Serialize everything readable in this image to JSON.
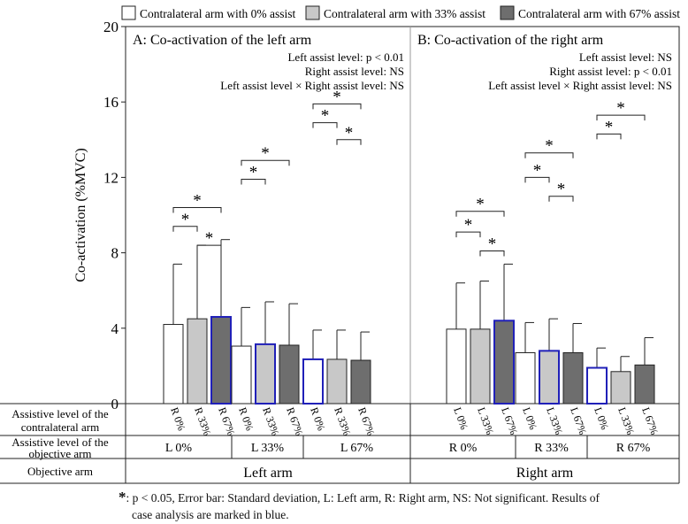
{
  "chart_data": {
    "type": "bar",
    "y_axis": {
      "label": "Co-activation  (%MVC)",
      "min": 0,
      "max": 20,
      "ticks": [
        0,
        4,
        8,
        12,
        16,
        20
      ]
    },
    "legend": {
      "placement": "top",
      "entries": [
        {
          "label": "Contralateral arm with 0% assist",
          "color": "#ffffff"
        },
        {
          "label": "Contralateral arm with 33% assist",
          "color": "#c8c8c8"
        },
        {
          "label": "Contralateral arm with 67% assist",
          "color": "#6e6e6e"
        }
      ]
    },
    "panels": [
      {
        "title": "A: Co-activation of the left arm",
        "stats": [
          "Left assist level: p < 0.01",
          "Right assist level: NS",
          "Left assist level × Right assist level: NS"
        ],
        "groups": [
          {
            "label": "L 0%",
            "bars": [
              {
                "label": "R 0%",
                "value": 4.2,
                "sd": 3.2,
                "fill": "white",
                "highlight": false
              },
              {
                "label": "R 33%",
                "value": 4.5,
                "sd": 3.9,
                "fill": "light",
                "highlight": false
              },
              {
                "label": "R 67%",
                "value": 4.6,
                "sd": 4.1,
                "fill": "dark",
                "highlight": true
              }
            ]
          },
          {
            "label": "L 33%",
            "bars": [
              {
                "label": "R 0%",
                "value": 3.05,
                "sd": 2.05,
                "fill": "white",
                "highlight": false
              },
              {
                "label": "R 33%",
                "value": 3.15,
                "sd": 2.25,
                "fill": "light",
                "highlight": true
              },
              {
                "label": "R 67%",
                "value": 3.1,
                "sd": 2.2,
                "fill": "dark",
                "highlight": false
              }
            ]
          },
          {
            "label": "L 67%",
            "bars": [
              {
                "label": "R 0%",
                "value": 2.35,
                "sd": 1.55,
                "fill": "white",
                "highlight": true
              },
              {
                "label": "R 33%",
                "value": 2.35,
                "sd": 1.55,
                "fill": "light",
                "highlight": false
              },
              {
                "label": "R 67%",
                "value": 2.3,
                "sd": 1.5,
                "fill": "dark",
                "highlight": false
              }
            ]
          }
        ],
        "objective_label": "Left arm",
        "brackets": [
          {
            "from": [
              0,
              0
            ],
            "to": [
              1,
              0
            ],
            "y": 9.4
          },
          {
            "from": [
              0,
              0
            ],
            "to": [
              2,
              0
            ],
            "y": 10.4
          },
          {
            "from": [
              0,
              1
            ],
            "to": [
              1,
              1
            ],
            "y": 11.9
          },
          {
            "from": [
              0,
              1
            ],
            "to": [
              2,
              1
            ],
            "y": 12.9
          },
          {
            "from": [
              1,
              0
            ],
            "to": [
              2,
              0
            ],
            "y": 8.4
          },
          {
            "from": [
              0,
              2
            ],
            "to": [
              1,
              2
            ],
            "y": 14.9
          },
          {
            "from": [
              0,
              2
            ],
            "to": [
              2,
              2
            ],
            "y": 15.9
          },
          {
            "from": [
              1,
              2
            ],
            "to": [
              2,
              2
            ],
            "y": 14.0
          }
        ]
      },
      {
        "title": "B: Co-activation of the right arm",
        "stats": [
          "Left assist level: NS",
          "Right assist level: p < 0.01",
          "Left assist level × Right assist level: NS"
        ],
        "groups": [
          {
            "label": "R 0%",
            "bars": [
              {
                "label": "L 0%",
                "value": 3.95,
                "sd": 2.45,
                "fill": "white",
                "highlight": false
              },
              {
                "label": "L 33%",
                "value": 3.95,
                "sd": 2.55,
                "fill": "light",
                "highlight": false
              },
              {
                "label": "L 67%",
                "value": 4.4,
                "sd": 3.0,
                "fill": "dark",
                "highlight": true
              }
            ]
          },
          {
            "label": "R 33%",
            "bars": [
              {
                "label": "L 0%",
                "value": 2.7,
                "sd": 1.6,
                "fill": "white",
                "highlight": false
              },
              {
                "label": "L 33%",
                "value": 2.8,
                "sd": 1.7,
                "fill": "light",
                "highlight": true
              },
              {
                "label": "L 67%",
                "value": 2.7,
                "sd": 1.55,
                "fill": "dark",
                "highlight": false
              }
            ]
          },
          {
            "label": "R 67%",
            "bars": [
              {
                "label": "L 0%",
                "value": 1.9,
                "sd": 1.05,
                "fill": "white",
                "highlight": true
              },
              {
                "label": "L 33%",
                "value": 1.7,
                "sd": 0.8,
                "fill": "light",
                "highlight": false
              },
              {
                "label": "L 67%",
                "value": 2.05,
                "sd": 1.45,
                "fill": "dark",
                "highlight": false
              }
            ]
          }
        ],
        "objective_label": "Right arm",
        "brackets": [
          {
            "from": [
              0,
              0
            ],
            "to": [
              1,
              0
            ],
            "y": 9.1
          },
          {
            "from": [
              0,
              0
            ],
            "to": [
              2,
              0
            ],
            "y": 10.2
          },
          {
            "from": [
              1,
              0
            ],
            "to": [
              2,
              0
            ],
            "y": 8.1
          },
          {
            "from": [
              0,
              1
            ],
            "to": [
              1,
              1
            ],
            "y": 12.0
          },
          {
            "from": [
              1,
              1
            ],
            "to": [
              2,
              1
            ],
            "y": 11.0
          },
          {
            "from": [
              0,
              1
            ],
            "to": [
              2,
              1
            ],
            "y": 13.3
          },
          {
            "from": [
              0,
              2
            ],
            "to": [
              1,
              2
            ],
            "y": 14.3
          },
          {
            "from": [
              0,
              2
            ],
            "to": [
              2,
              2
            ],
            "y": 15.3
          }
        ]
      }
    ],
    "row_labels": {
      "contralateral": [
        "Assistive level of the",
        "contralateral arm"
      ],
      "objective_level": [
        "Assistive level of the",
        "objective arm"
      ],
      "objective_arm": "Objective arm"
    },
    "significance_marker": "*",
    "colors": {
      "white": "#ffffff",
      "light": "#c8c8c8",
      "dark": "#6e6e6e",
      "highlight": "#2020b8"
    }
  },
  "footnote": {
    "symbol": "*",
    "line1": ": p < 0.05, Error bar: Standard deviation, L: Left arm, R: Right arm, NS: Not significant. Results of",
    "line2": "case analysis are marked in blue."
  }
}
